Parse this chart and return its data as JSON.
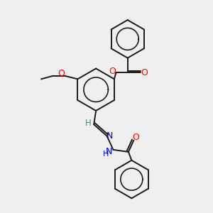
{
  "bg_color": "#efefef",
  "bond_color": "#1a1a1a",
  "o_color": "#ff0000",
  "n_color": "#0000cc",
  "ch_color": "#3a8a8a",
  "line_width": 1.4,
  "figsize": [
    3.0,
    3.0
  ],
  "dpi": 100,
  "xlim": [
    0,
    10
  ],
  "ylim": [
    0,
    10
  ]
}
